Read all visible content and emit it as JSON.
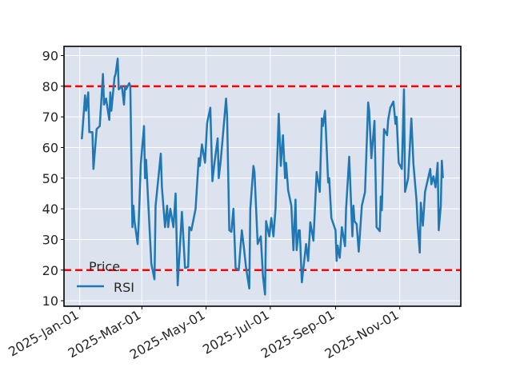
{
  "chart_data": {
    "type": "line",
    "title": "",
    "xlabel": "",
    "ylabel": "",
    "x_unit": "days since 2025-01-01",
    "xlim": [
      -15,
      362
    ],
    "ylim": [
      8.2,
      93
    ],
    "grid": true,
    "yticks": [
      10,
      20,
      30,
      40,
      50,
      60,
      70,
      80,
      90
    ],
    "xticks": [
      {
        "day": 0,
        "label": "2025-Jan-01"
      },
      {
        "day": 59,
        "label": "2025-Mar-01"
      },
      {
        "day": 120,
        "label": "2025-May-01"
      },
      {
        "day": 181,
        "label": "2025-Jul-01"
      },
      {
        "day": 243,
        "label": "2025-Sep-01"
      },
      {
        "day": 304,
        "label": "2025-Nov-01"
      }
    ],
    "hlines": [
      {
        "y": 80,
        "color": "#ff0000",
        "style": "dashed"
      },
      {
        "y": 20,
        "color": "#ff0000",
        "style": "dashed"
      }
    ],
    "legend": {
      "title": "Price",
      "placement": "lower-left",
      "entries": [
        "RSI"
      ]
    },
    "series": [
      {
        "name": "RSI",
        "color": "#1f77b4",
        "x": [
          1,
          2,
          5,
          6,
          8,
          9,
          12,
          13,
          16,
          19,
          22,
          23,
          25,
          28,
          29,
          30,
          33,
          34,
          36,
          37,
          40,
          42,
          43,
          44,
          47,
          48,
          50,
          51,
          52,
          55,
          56,
          58,
          61,
          62,
          63,
          68,
          71,
          72,
          77,
          78,
          81,
          83,
          84,
          86,
          89,
          91,
          93,
          97,
          100,
          103,
          104,
          106,
          110,
          113,
          114,
          116,
          119,
          121,
          124,
          126,
          128,
          131,
          132,
          134,
          139,
          140,
          142,
          144,
          146,
          148,
          151,
          154,
          156,
          158,
          161,
          162,
          165,
          166,
          169,
          172,
          174,
          176,
          177,
          180,
          182,
          184,
          186,
          189,
          191,
          193,
          195,
          196,
          198,
          201,
          202,
          203,
          205,
          206,
          208,
          209,
          211,
          215,
          217,
          219,
          222,
          225,
          228,
          230,
          231,
          233,
          236,
          237,
          239,
          243,
          244,
          245,
          247,
          249,
          252,
          253,
          256,
          259,
          260,
          261,
          263,
          265,
          268,
          271,
          274,
          275,
          277,
          280,
          282,
          285,
          286,
          287,
          289,
          292,
          293,
          295,
          298,
          300,
          301,
          303,
          306,
          308,
          309,
          312,
          315,
          317,
          320,
          321,
          323,
          324,
          326,
          328,
          333,
          334,
          336,
          338,
          340,
          341,
          343,
          344,
          345
        ],
        "values": [
          63,
          63,
          77,
          72,
          78,
          65,
          65,
          53,
          66,
          67,
          84,
          74,
          76,
          69,
          78,
          72,
          83,
          84,
          89,
          79,
          80,
          74,
          80,
          79,
          81,
          80,
          34,
          41,
          36,
          28.5,
          35.6,
          54.6,
          67,
          50,
          56,
          22,
          17,
          41,
          58,
          47,
          34,
          41,
          34,
          40,
          34,
          45,
          15,
          39,
          20.7,
          21,
          34,
          33,
          40,
          56.5,
          54,
          61,
          55,
          68,
          73,
          49,
          55,
          63,
          50,
          56,
          76,
          70,
          33,
          32.5,
          40,
          20.7,
          20,
          33,
          27,
          20.7,
          14,
          40,
          54,
          52,
          28.5,
          31,
          18,
          12,
          36,
          31,
          37,
          31,
          40,
          71,
          54,
          64,
          50,
          55,
          46,
          41,
          33.5,
          26.5,
          43,
          26.5,
          33,
          33,
          16,
          28.5,
          23,
          35.6,
          29.6,
          52,
          45.5,
          69.5,
          67,
          72,
          48.6,
          50,
          37,
          33,
          23,
          28,
          24,
          34,
          27.8,
          40,
          57,
          31,
          41,
          36,
          35,
          26,
          41,
          45.5,
          74.7,
          72,
          56.5,
          68.7,
          34,
          32.7,
          44,
          39.5,
          66,
          64,
          69,
          73,
          75,
          67.7,
          70,
          55,
          53,
          79,
          45.5,
          50,
          69.5,
          54.6,
          42.6,
          34.8,
          25.7,
          42,
          34.5,
          45.5,
          53,
          48,
          50.6,
          47,
          55,
          33,
          41,
          55.7,
          50
        ]
      }
    ]
  }
}
